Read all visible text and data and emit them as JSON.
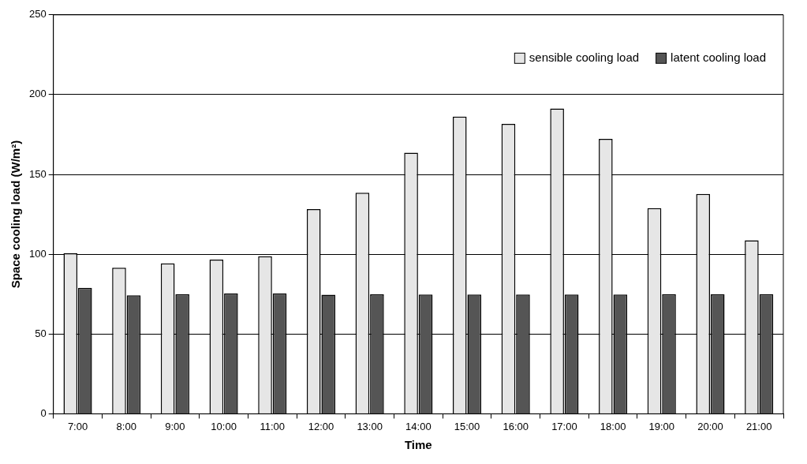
{
  "chart_data": {
    "type": "bar",
    "xlabel": "Time",
    "ylabel": "Space cooling load (W/m²)",
    "categories": [
      "7:00",
      "8:00",
      "9:00",
      "10:00",
      "11:00",
      "12:00",
      "13:00",
      "14:00",
      "15:00",
      "16:00",
      "17:00",
      "18:00",
      "19:00",
      "20:00",
      "21:00"
    ],
    "series": [
      {
        "name": "sensible cooling load",
        "color": "#e6e6e6",
        "values": [
          100.7,
          91.6,
          94.3,
          96.6,
          98.7,
          128.3,
          138.5,
          163.6,
          186.2,
          181.7,
          191.3,
          172.3,
          128.9,
          137.8,
          108.7
        ]
      },
      {
        "name": "latent cooling load",
        "color": "#555555",
        "values": [
          79,
          74.3,
          75,
          75.5,
          75.5,
          74.6,
          74.8,
          74.7,
          74.7,
          74.7,
          74.7,
          74.7,
          75,
          74.8,
          75
        ]
      }
    ],
    "ylim": [
      0,
      250
    ],
    "yticks": [
      0,
      50,
      100,
      150,
      200,
      250
    ],
    "grid": "y",
    "legend": "top right"
  }
}
